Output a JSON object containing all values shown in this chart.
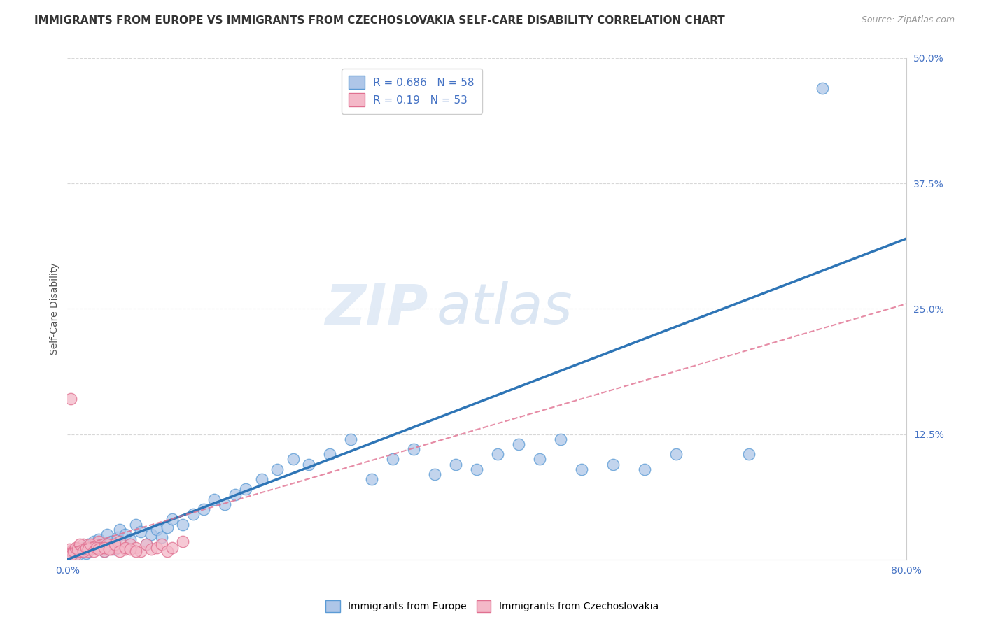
{
  "title": "IMMIGRANTS FROM EUROPE VS IMMIGRANTS FROM CZECHOSLOVAKIA SELF-CARE DISABILITY CORRELATION CHART",
  "source": "Source: ZipAtlas.com",
  "xlabel": "",
  "ylabel": "Self-Care Disability",
  "xlim": [
    0,
    0.8
  ],
  "ylim": [
    0,
    0.5
  ],
  "xticks": [
    0.0,
    0.8
  ],
  "xticklabels": [
    "0.0%",
    "80.0%"
  ],
  "yticks": [
    0.125,
    0.25,
    0.375,
    0.5
  ],
  "yticklabels": [
    "12.5%",
    "25.0%",
    "37.5%",
    "50.0%"
  ],
  "series1_label": "Immigrants from Europe",
  "series1_color": "#aec6e8",
  "series1_edge_color": "#5b9bd5",
  "series1_line_color": "#2e75b6",
  "series1_R": 0.686,
  "series1_N": 58,
  "series2_label": "Immigrants from Czechoslovakia",
  "series2_color": "#f4b8c8",
  "series2_edge_color": "#e07090",
  "series2_line_color": "#c9556e",
  "series2_R": 0.19,
  "series2_N": 53,
  "watermark_zip": "ZIP",
  "watermark_atlas": "atlas",
  "watermark_color": "#c8d8ec",
  "background_color": "#ffffff",
  "grid_color": "#d8d8d8",
  "title_fontsize": 11,
  "axis_label_fontsize": 10,
  "tick_fontsize": 10,
  "legend_fontsize": 11,
  "blue_line_x": [
    0.0,
    0.8
  ],
  "blue_line_y": [
    0.0,
    0.32
  ],
  "pink_line_x": [
    0.0,
    0.8
  ],
  "pink_line_y": [
    0.01,
    0.255
  ],
  "blue_x": [
    0.005,
    0.008,
    0.01,
    0.012,
    0.015,
    0.018,
    0.02,
    0.022,
    0.025,
    0.028,
    0.03,
    0.032,
    0.035,
    0.038,
    0.04,
    0.042,
    0.045,
    0.048,
    0.05,
    0.055,
    0.06,
    0.065,
    0.07,
    0.075,
    0.08,
    0.085,
    0.09,
    0.095,
    0.1,
    0.11,
    0.12,
    0.13,
    0.14,
    0.15,
    0.16,
    0.17,
    0.185,
    0.2,
    0.215,
    0.23,
    0.25,
    0.27,
    0.29,
    0.31,
    0.33,
    0.35,
    0.37,
    0.39,
    0.41,
    0.43,
    0.45,
    0.47,
    0.49,
    0.52,
    0.55,
    0.58,
    0.65,
    0.72
  ],
  "blue_y": [
    0.005,
    0.01,
    0.005,
    0.008,
    0.012,
    0.006,
    0.015,
    0.01,
    0.018,
    0.012,
    0.02,
    0.015,
    0.008,
    0.025,
    0.015,
    0.018,
    0.01,
    0.022,
    0.03,
    0.025,
    0.02,
    0.035,
    0.028,
    0.015,
    0.025,
    0.03,
    0.022,
    0.032,
    0.04,
    0.035,
    0.045,
    0.05,
    0.06,
    0.055,
    0.065,
    0.07,
    0.08,
    0.09,
    0.1,
    0.095,
    0.105,
    0.12,
    0.08,
    0.1,
    0.11,
    0.085,
    0.095,
    0.09,
    0.105,
    0.115,
    0.1,
    0.12,
    0.09,
    0.095,
    0.09,
    0.105,
    0.105,
    0.47
  ],
  "pink_x": [
    0.002,
    0.004,
    0.006,
    0.008,
    0.01,
    0.012,
    0.015,
    0.018,
    0.02,
    0.022,
    0.025,
    0.028,
    0.03,
    0.032,
    0.035,
    0.038,
    0.04,
    0.042,
    0.045,
    0.048,
    0.05,
    0.055,
    0.06,
    0.065,
    0.07,
    0.075,
    0.08,
    0.085,
    0.09,
    0.095,
    0.1,
    0.11,
    0.002,
    0.004,
    0.006,
    0.008,
    0.01,
    0.012,
    0.015,
    0.018,
    0.02,
    0.022,
    0.025,
    0.028,
    0.03,
    0.035,
    0.04,
    0.045,
    0.05,
    0.055,
    0.06,
    0.065,
    0.003
  ],
  "pink_y": [
    0.005,
    0.008,
    0.01,
    0.005,
    0.012,
    0.008,
    0.015,
    0.01,
    0.008,
    0.012,
    0.015,
    0.01,
    0.018,
    0.012,
    0.008,
    0.015,
    0.012,
    0.01,
    0.015,
    0.012,
    0.018,
    0.01,
    0.015,
    0.012,
    0.008,
    0.015,
    0.01,
    0.012,
    0.015,
    0.008,
    0.012,
    0.018,
    0.01,
    0.005,
    0.008,
    0.012,
    0.01,
    0.015,
    0.008,
    0.012,
    0.01,
    0.015,
    0.008,
    0.012,
    0.01,
    0.012,
    0.01,
    0.015,
    0.008,
    0.012,
    0.01,
    0.008,
    0.16
  ]
}
